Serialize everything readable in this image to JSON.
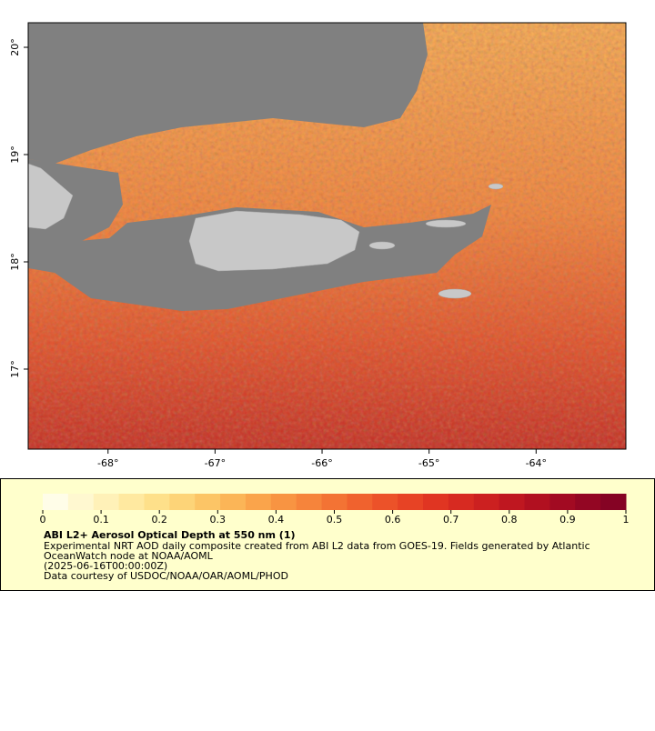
{
  "map": {
    "xlim": [
      -68.746,
      -63.161
    ],
    "ylim": [
      16.254,
      20.229
    ],
    "xticks": [
      {
        "value": -68,
        "label": "-68°"
      },
      {
        "value": -67,
        "label": "-67°"
      },
      {
        "value": -66,
        "label": "-66°"
      },
      {
        "value": -65,
        "label": "-65°"
      },
      {
        "value": -64,
        "label": "-64°"
      }
    ],
    "yticks": [
      {
        "value": 17,
        "label": "17°"
      },
      {
        "value": 18,
        "label": "18°"
      },
      {
        "value": 19,
        "label": "19°"
      },
      {
        "value": 20,
        "label": "20°"
      }
    ]
  },
  "colorbar": {
    "lim": [
      0,
      1
    ],
    "ticks": [
      0,
      0.1,
      0.2,
      0.3,
      0.4,
      0.5,
      0.6,
      0.7,
      0.8,
      0.9,
      1
    ],
    "colors": [
      "#fffde8",
      "#fff8d0",
      "#fff1b8",
      "#ffe9a0",
      "#fee08a",
      "#fdd478",
      "#fcc566",
      "#fbb557",
      "#faa44b",
      "#f89442",
      "#f6843b",
      "#f37334",
      "#f0622e",
      "#ec5229",
      "#e74325",
      "#e03522",
      "#d72a21",
      "#cc2020",
      "#bf1720",
      "#b11020",
      "#a20a22",
      "#930623",
      "#850324"
    ]
  },
  "legend": {
    "title": "ABI L2+ Aerosol Optical Depth at 550 nm (1)",
    "lines": [
      "Experimental NRT AOD daily composite created from ABI L2 data from GOES-19. Fields generated by Atlantic",
      "OceanWatch node at NOAA/AOML",
      "(2025-06-16T00:00:00Z)",
      "Data courtesy of USDOC/NOAA/OAR/AOML/PHOD"
    ]
  }
}
